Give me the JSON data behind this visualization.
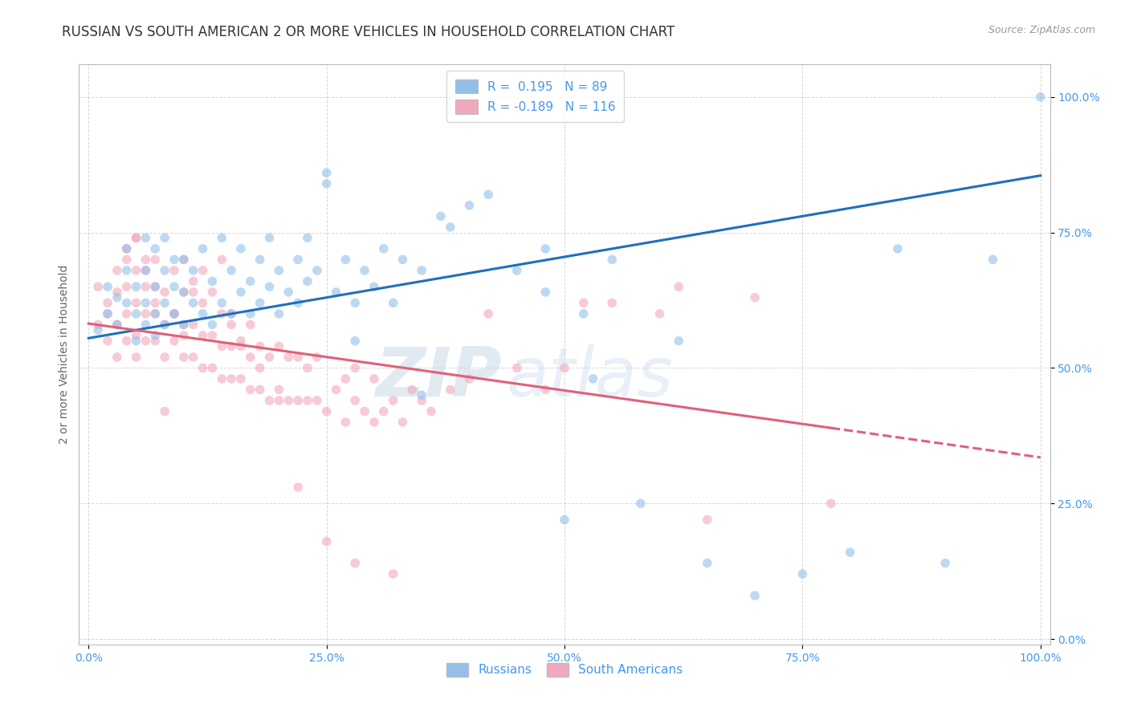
{
  "title": "RUSSIAN VS SOUTH AMERICAN 2 OR MORE VEHICLES IN HOUSEHOLD CORRELATION CHART",
  "source": "Source: ZipAtlas.com",
  "ylabel": "2 or more Vehicles in Household",
  "watermark_zip": "ZIP",
  "watermark_atlas": "atlas",
  "russian_R": 0.195,
  "russian_N": 89,
  "southam_R": -0.189,
  "southam_N": 116,
  "xlim": [
    -0.01,
    1.01
  ],
  "ylim": [
    -0.01,
    1.06
  ],
  "xticks": [
    0.0,
    0.25,
    0.5,
    0.75,
    1.0
  ],
  "yticks": [
    0.0,
    0.25,
    0.5,
    0.75,
    1.0
  ],
  "xtick_labels": [
    "0.0%",
    "25.0%",
    "50.0%",
    "75.0%",
    "100.0%"
  ],
  "ytick_labels": [
    "0.0%",
    "25.0%",
    "50.0%",
    "75.0%",
    "100.0%"
  ],
  "russian_color": "#92C0EA",
  "southam_color": "#F2A8BC",
  "russian_line_color": "#1F6FBF",
  "southam_line_color": "#E0607A",
  "background_color": "#FFFFFF",
  "grid_color": "#CCCCCC",
  "title_fontsize": 12,
  "source_fontsize": 9,
  "axis_label_fontsize": 10,
  "tick_fontsize": 10,
  "legend_fontsize": 11,
  "scatter_alpha": 0.6,
  "scatter_size": 70,
  "tick_color": "#4499EE",
  "russian_line_y0": 0.555,
  "russian_line_y1": 0.855,
  "southam_line_y0": 0.582,
  "southam_line_y1": 0.335,
  "southam_line_solid_end": 0.78,
  "russian_x": [
    0.01,
    0.02,
    0.02,
    0.03,
    0.03,
    0.04,
    0.04,
    0.04,
    0.05,
    0.05,
    0.05,
    0.06,
    0.06,
    0.06,
    0.06,
    0.07,
    0.07,
    0.07,
    0.07,
    0.08,
    0.08,
    0.08,
    0.08,
    0.09,
    0.09,
    0.09,
    0.1,
    0.1,
    0.1,
    0.11,
    0.11,
    0.12,
    0.12,
    0.13,
    0.13,
    0.14,
    0.14,
    0.15,
    0.15,
    0.16,
    0.16,
    0.17,
    0.17,
    0.18,
    0.18,
    0.19,
    0.19,
    0.2,
    0.2,
    0.21,
    0.22,
    0.22,
    0.23,
    0.23,
    0.24,
    0.25,
    0.25,
    0.26,
    0.27,
    0.28,
    0.29,
    0.3,
    0.31,
    0.32,
    0.33,
    0.35,
    0.37,
    0.38,
    0.4,
    0.42,
    0.45,
    0.48,
    0.5,
    0.52,
    0.55,
    0.58,
    0.62,
    0.65,
    0.7,
    0.75,
    0.8,
    0.85,
    0.9,
    0.95,
    1.0,
    0.53,
    0.48,
    0.35,
    0.28
  ],
  "russian_y": [
    0.57,
    0.6,
    0.65,
    0.58,
    0.63,
    0.62,
    0.68,
    0.72,
    0.55,
    0.6,
    0.65,
    0.58,
    0.62,
    0.68,
    0.74,
    0.56,
    0.6,
    0.65,
    0.72,
    0.58,
    0.62,
    0.68,
    0.74,
    0.6,
    0.65,
    0.7,
    0.58,
    0.64,
    0.7,
    0.62,
    0.68,
    0.6,
    0.72,
    0.58,
    0.66,
    0.62,
    0.74,
    0.6,
    0.68,
    0.64,
    0.72,
    0.6,
    0.66,
    0.62,
    0.7,
    0.65,
    0.74,
    0.6,
    0.68,
    0.64,
    0.62,
    0.7,
    0.66,
    0.74,
    0.68,
    0.84,
    0.86,
    0.64,
    0.7,
    0.62,
    0.68,
    0.65,
    0.72,
    0.62,
    0.7,
    0.68,
    0.78,
    0.76,
    0.8,
    0.82,
    0.68,
    0.72,
    0.22,
    0.6,
    0.7,
    0.25,
    0.55,
    0.14,
    0.08,
    0.12,
    0.16,
    0.72,
    0.14,
    0.7,
    1.0,
    0.48,
    0.64,
    0.45,
    0.55
  ],
  "southam_x": [
    0.01,
    0.01,
    0.02,
    0.02,
    0.03,
    0.03,
    0.03,
    0.04,
    0.04,
    0.04,
    0.04,
    0.05,
    0.05,
    0.05,
    0.05,
    0.05,
    0.06,
    0.06,
    0.06,
    0.06,
    0.07,
    0.07,
    0.07,
    0.07,
    0.08,
    0.08,
    0.08,
    0.09,
    0.09,
    0.09,
    0.1,
    0.1,
    0.1,
    0.1,
    0.11,
    0.11,
    0.11,
    0.12,
    0.12,
    0.12,
    0.13,
    0.13,
    0.14,
    0.14,
    0.14,
    0.15,
    0.15,
    0.15,
    0.16,
    0.16,
    0.17,
    0.17,
    0.17,
    0.18,
    0.18,
    0.19,
    0.19,
    0.2,
    0.2,
    0.21,
    0.21,
    0.22,
    0.22,
    0.23,
    0.23,
    0.24,
    0.24,
    0.25,
    0.26,
    0.27,
    0.27,
    0.28,
    0.28,
    0.29,
    0.3,
    0.3,
    0.31,
    0.32,
    0.33,
    0.34,
    0.35,
    0.36,
    0.38,
    0.4,
    0.42,
    0.45,
    0.48,
    0.5,
    0.52,
    0.55,
    0.6,
    0.62,
    0.65,
    0.7,
    0.78,
    0.02,
    0.03,
    0.04,
    0.05,
    0.06,
    0.07,
    0.08,
    0.09,
    0.1,
    0.11,
    0.12,
    0.13,
    0.14,
    0.15,
    0.16,
    0.18,
    0.2,
    0.22,
    0.25,
    0.28,
    0.32
  ],
  "southam_y": [
    0.58,
    0.65,
    0.55,
    0.62,
    0.52,
    0.58,
    0.64,
    0.55,
    0.6,
    0.65,
    0.7,
    0.52,
    0.56,
    0.62,
    0.68,
    0.74,
    0.55,
    0.6,
    0.65,
    0.7,
    0.55,
    0.6,
    0.65,
    0.7,
    0.52,
    0.58,
    0.64,
    0.55,
    0.6,
    0.68,
    0.52,
    0.58,
    0.64,
    0.7,
    0.52,
    0.58,
    0.64,
    0.5,
    0.56,
    0.62,
    0.5,
    0.56,
    0.48,
    0.54,
    0.6,
    0.48,
    0.54,
    0.6,
    0.48,
    0.55,
    0.46,
    0.52,
    0.58,
    0.46,
    0.54,
    0.44,
    0.52,
    0.46,
    0.54,
    0.44,
    0.52,
    0.44,
    0.52,
    0.44,
    0.5,
    0.44,
    0.52,
    0.42,
    0.46,
    0.4,
    0.48,
    0.44,
    0.5,
    0.42,
    0.4,
    0.48,
    0.42,
    0.44,
    0.4,
    0.46,
    0.44,
    0.42,
    0.46,
    0.48,
    0.6,
    0.5,
    0.46,
    0.5,
    0.62,
    0.62,
    0.6,
    0.65,
    0.22,
    0.63,
    0.25,
    0.6,
    0.68,
    0.72,
    0.74,
    0.68,
    0.62,
    0.42,
    0.6,
    0.56,
    0.66,
    0.68,
    0.64,
    0.7,
    0.58,
    0.54,
    0.5,
    0.44,
    0.28,
    0.18,
    0.14,
    0.12
  ]
}
